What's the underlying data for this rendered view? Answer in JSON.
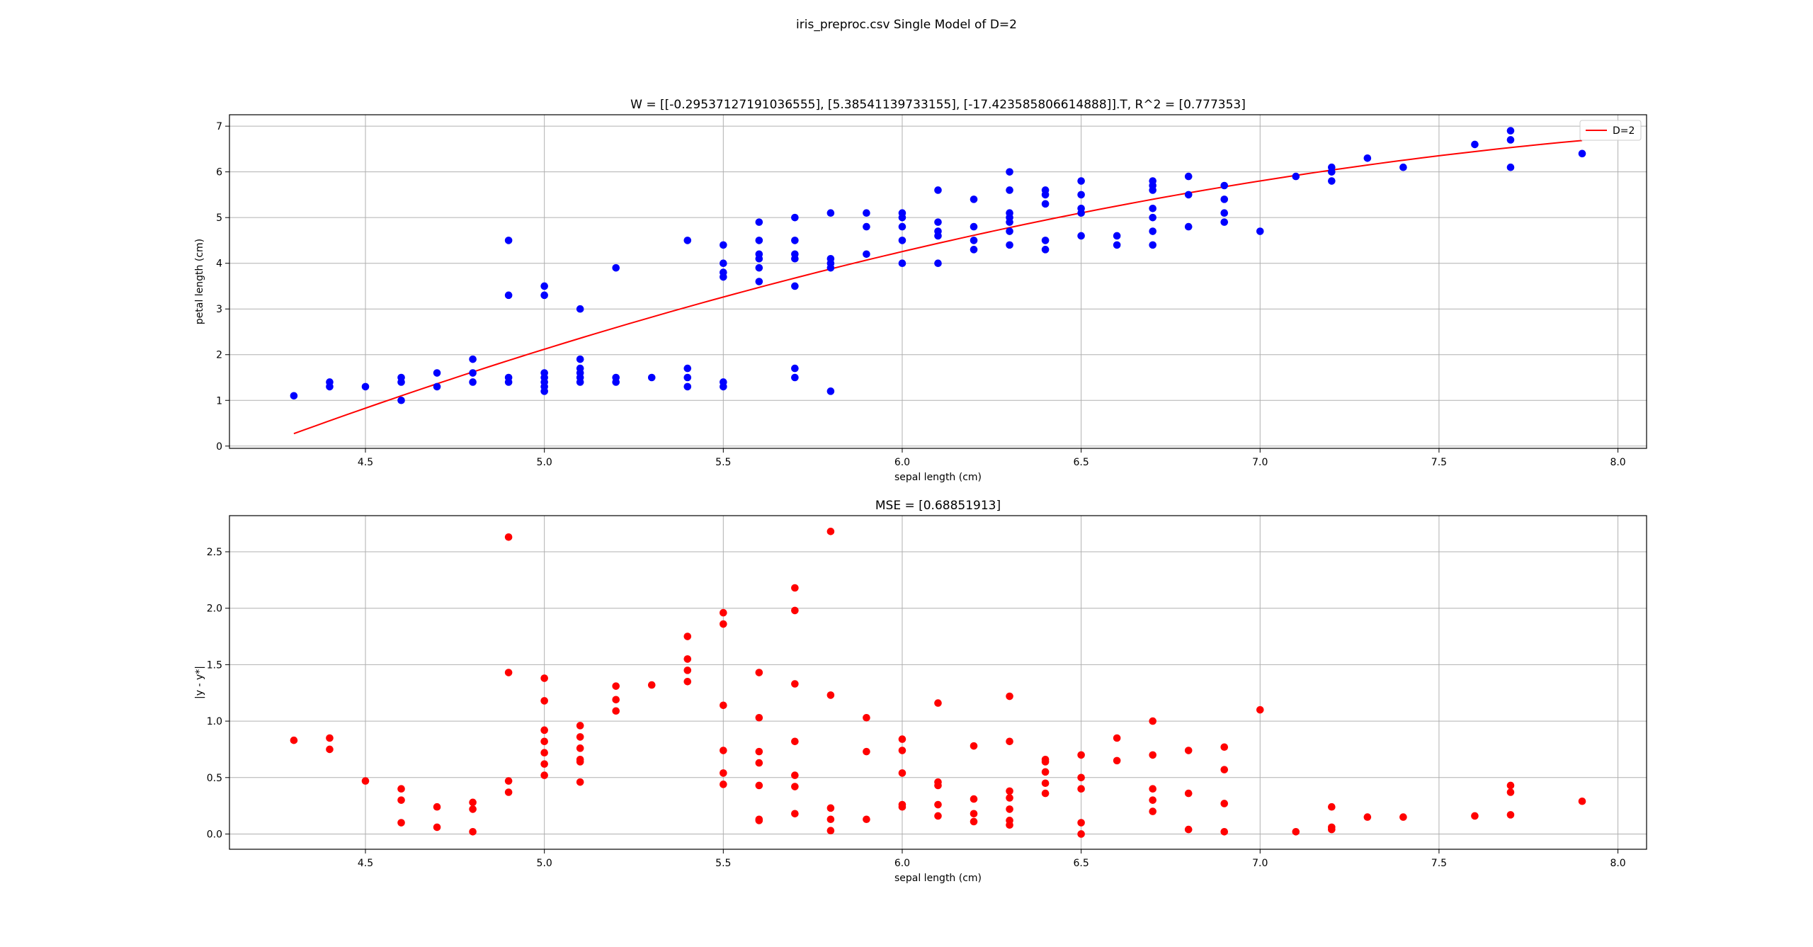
{
  "figure": {
    "suptitle": "iris_preproc.csv Single Model of D=2"
  },
  "chart_data": [
    {
      "type": "scatter",
      "title": "W = [[-0.29537127191036555], [5.38541139733155], [-17.423585806614888]].T, R^2 = [0.777353]",
      "xlabel": "sepal length (cm)",
      "ylabel": "petal length (cm)",
      "xlim": [
        4.12,
        8.08
      ],
      "ylim": [
        -0.05,
        7.25
      ],
      "xticks": [
        4.5,
        5.0,
        5.5,
        6.0,
        6.5,
        7.0,
        7.5,
        8.0
      ],
      "yticks": [
        0,
        1,
        2,
        3,
        4,
        5,
        6,
        7
      ],
      "grid": true,
      "legend_position": "top-right",
      "point_color": "#0000ff",
      "points": [
        [
          4.3,
          1.1
        ],
        [
          4.4,
          1.3
        ],
        [
          4.4,
          1.4
        ],
        [
          4.5,
          1.3
        ],
        [
          4.6,
          1.0
        ],
        [
          4.6,
          1.4
        ],
        [
          4.6,
          1.5
        ],
        [
          4.7,
          1.3
        ],
        [
          4.7,
          1.6
        ],
        [
          4.8,
          1.4
        ],
        [
          4.8,
          1.6
        ],
        [
          4.8,
          1.9
        ],
        [
          4.9,
          1.4
        ],
        [
          4.9,
          1.5
        ],
        [
          4.9,
          3.3
        ],
        [
          4.9,
          4.5
        ],
        [
          5.0,
          1.2
        ],
        [
          5.0,
          1.3
        ],
        [
          5.0,
          1.4
        ],
        [
          5.0,
          1.5
        ],
        [
          5.0,
          1.6
        ],
        [
          5.0,
          3.3
        ],
        [
          5.0,
          3.5
        ],
        [
          5.1,
          1.4
        ],
        [
          5.1,
          1.5
        ],
        [
          5.1,
          1.6
        ],
        [
          5.1,
          1.7
        ],
        [
          5.1,
          1.9
        ],
        [
          5.1,
          3.0
        ],
        [
          5.2,
          1.4
        ],
        [
          5.2,
          1.5
        ],
        [
          5.2,
          3.9
        ],
        [
          5.3,
          1.5
        ],
        [
          5.4,
          1.3
        ],
        [
          5.4,
          1.5
        ],
        [
          5.4,
          1.7
        ],
        [
          5.4,
          4.5
        ],
        [
          5.5,
          1.3
        ],
        [
          5.5,
          1.4
        ],
        [
          5.5,
          3.7
        ],
        [
          5.5,
          3.8
        ],
        [
          5.5,
          4.0
        ],
        [
          5.5,
          4.4
        ],
        [
          5.6,
          3.6
        ],
        [
          5.6,
          3.9
        ],
        [
          5.6,
          4.1
        ],
        [
          5.6,
          4.2
        ],
        [
          5.6,
          4.5
        ],
        [
          5.6,
          4.9
        ],
        [
          5.7,
          1.5
        ],
        [
          5.7,
          1.7
        ],
        [
          5.7,
          3.5
        ],
        [
          5.7,
          4.1
        ],
        [
          5.7,
          4.2
        ],
        [
          5.7,
          4.5
        ],
        [
          5.7,
          5.0
        ],
        [
          5.8,
          1.2
        ],
        [
          5.8,
          3.9
        ],
        [
          5.8,
          4.0
        ],
        [
          5.8,
          4.1
        ],
        [
          5.8,
          5.1
        ],
        [
          5.9,
          4.2
        ],
        [
          5.9,
          4.8
        ],
        [
          5.9,
          5.1
        ],
        [
          6.0,
          4.0
        ],
        [
          6.0,
          4.5
        ],
        [
          6.0,
          4.8
        ],
        [
          6.0,
          5.0
        ],
        [
          6.0,
          5.1
        ],
        [
          6.1,
          4.0
        ],
        [
          6.1,
          4.6
        ],
        [
          6.1,
          4.7
        ],
        [
          6.1,
          4.9
        ],
        [
          6.1,
          5.6
        ],
        [
          6.2,
          4.3
        ],
        [
          6.2,
          4.5
        ],
        [
          6.2,
          4.8
        ],
        [
          6.2,
          5.4
        ],
        [
          6.3,
          4.4
        ],
        [
          6.3,
          4.7
        ],
        [
          6.3,
          4.9
        ],
        [
          6.3,
          5.0
        ],
        [
          6.3,
          5.1
        ],
        [
          6.3,
          5.6
        ],
        [
          6.3,
          6.0
        ],
        [
          6.4,
          4.3
        ],
        [
          6.4,
          4.5
        ],
        [
          6.4,
          5.3
        ],
        [
          6.4,
          5.5
        ],
        [
          6.4,
          5.6
        ],
        [
          6.5,
          4.6
        ],
        [
          6.5,
          5.1
        ],
        [
          6.5,
          5.2
        ],
        [
          6.5,
          5.5
        ],
        [
          6.5,
          5.8
        ],
        [
          6.6,
          4.4
        ],
        [
          6.6,
          4.6
        ],
        [
          6.7,
          4.4
        ],
        [
          6.7,
          4.7
        ],
        [
          6.7,
          5.0
        ],
        [
          6.7,
          5.2
        ],
        [
          6.7,
          5.6
        ],
        [
          6.7,
          5.7
        ],
        [
          6.7,
          5.8
        ],
        [
          6.8,
          4.8
        ],
        [
          6.8,
          5.5
        ],
        [
          6.8,
          5.9
        ],
        [
          6.9,
          4.9
        ],
        [
          6.9,
          5.1
        ],
        [
          6.9,
          5.4
        ],
        [
          6.9,
          5.7
        ],
        [
          7.0,
          4.7
        ],
        [
          7.1,
          5.9
        ],
        [
          7.2,
          5.8
        ],
        [
          7.2,
          6.0
        ],
        [
          7.2,
          6.1
        ],
        [
          7.3,
          6.3
        ],
        [
          7.4,
          6.1
        ],
        [
          7.6,
          6.6
        ],
        [
          7.7,
          6.1
        ],
        [
          7.7,
          6.7
        ],
        [
          7.7,
          6.9
        ],
        [
          7.9,
          6.4
        ]
      ],
      "series": [
        {
          "name": "D=2",
          "type": "line",
          "color": "#ff0000",
          "coefficients": [
            -0.29537127191036555,
            5.38541139733155,
            -17.423585806614888
          ],
          "x_range": [
            4.3,
            7.9
          ]
        }
      ]
    },
    {
      "type": "scatter",
      "title": "MSE = [0.68851913]",
      "xlabel": "sepal length (cm)",
      "ylabel": "|y - y*|",
      "xlim": [
        4.12,
        8.08
      ],
      "ylim": [
        -0.135,
        2.82
      ],
      "xticks": [
        4.5,
        5.0,
        5.5,
        6.0,
        6.5,
        7.0,
        7.5,
        8.0
      ],
      "yticks": [
        0.0,
        0.5,
        1.0,
        1.5,
        2.0,
        2.5
      ],
      "grid": true,
      "point_color": "#ff0000",
      "points": [
        [
          4.3,
          0.83
        ],
        [
          4.4,
          0.75
        ],
        [
          4.4,
          0.85
        ],
        [
          4.5,
          0.47
        ],
        [
          4.6,
          0.1
        ],
        [
          4.6,
          0.3
        ],
        [
          4.6,
          0.4
        ],
        [
          4.7,
          0.06
        ],
        [
          4.7,
          0.24
        ],
        [
          4.8,
          0.02
        ],
        [
          4.8,
          0.22
        ],
        [
          4.8,
          0.28
        ],
        [
          4.9,
          0.37
        ],
        [
          4.9,
          0.47
        ],
        [
          4.9,
          1.43
        ],
        [
          4.9,
          2.63
        ],
        [
          5.0,
          0.52
        ],
        [
          5.0,
          0.62
        ],
        [
          5.0,
          0.72
        ],
        [
          5.0,
          0.82
        ],
        [
          5.0,
          0.92
        ],
        [
          5.0,
          1.18
        ],
        [
          5.0,
          1.38
        ],
        [
          5.1,
          0.46
        ],
        [
          5.1,
          0.64
        ],
        [
          5.1,
          0.66
        ],
        [
          5.1,
          0.76
        ],
        [
          5.1,
          0.86
        ],
        [
          5.1,
          0.96
        ],
        [
          5.2,
          1.09
        ],
        [
          5.2,
          1.19
        ],
        [
          5.2,
          1.31
        ],
        [
          5.3,
          1.32
        ],
        [
          5.4,
          1.35
        ],
        [
          5.4,
          1.45
        ],
        [
          5.4,
          1.55
        ],
        [
          5.4,
          1.75
        ],
        [
          5.5,
          0.44
        ],
        [
          5.5,
          0.54
        ],
        [
          5.5,
          0.74
        ],
        [
          5.5,
          1.14
        ],
        [
          5.5,
          1.86
        ],
        [
          5.5,
          1.96
        ],
        [
          5.6,
          0.12
        ],
        [
          5.6,
          0.13
        ],
        [
          5.6,
          0.43
        ],
        [
          5.6,
          0.63
        ],
        [
          5.6,
          0.73
        ],
        [
          5.6,
          1.03
        ],
        [
          5.6,
          1.43
        ],
        [
          5.7,
          0.18
        ],
        [
          5.7,
          0.42
        ],
        [
          5.7,
          0.52
        ],
        [
          5.7,
          0.82
        ],
        [
          5.7,
          1.33
        ],
        [
          5.7,
          1.98
        ],
        [
          5.7,
          2.18
        ],
        [
          5.8,
          0.03
        ],
        [
          5.8,
          0.13
        ],
        [
          5.8,
          0.23
        ],
        [
          5.8,
          1.23
        ],
        [
          5.8,
          2.68
        ],
        [
          5.9,
          0.13
        ],
        [
          5.9,
          0.73
        ],
        [
          5.9,
          1.03
        ],
        [
          6.0,
          0.24
        ],
        [
          6.0,
          0.26
        ],
        [
          6.0,
          0.54
        ],
        [
          6.0,
          0.74
        ],
        [
          6.0,
          0.84
        ],
        [
          6.1,
          0.16
        ],
        [
          6.1,
          0.26
        ],
        [
          6.1,
          0.43
        ],
        [
          6.1,
          0.46
        ],
        [
          6.1,
          1.16
        ],
        [
          6.2,
          0.11
        ],
        [
          6.2,
          0.18
        ],
        [
          6.2,
          0.31
        ],
        [
          6.2,
          0.78
        ],
        [
          6.3,
          0.08
        ],
        [
          6.3,
          0.12
        ],
        [
          6.3,
          0.22
        ],
        [
          6.3,
          0.32
        ],
        [
          6.3,
          0.38
        ],
        [
          6.3,
          0.82
        ],
        [
          6.3,
          1.22
        ],
        [
          6.4,
          0.36
        ],
        [
          6.4,
          0.45
        ],
        [
          6.4,
          0.55
        ],
        [
          6.4,
          0.64
        ],
        [
          6.4,
          0.66
        ],
        [
          6.5,
          0.0
        ],
        [
          6.5,
          0.1
        ],
        [
          6.5,
          0.4
        ],
        [
          6.5,
          0.5
        ],
        [
          6.5,
          0.7
        ],
        [
          6.6,
          0.65
        ],
        [
          6.6,
          0.85
        ],
        [
          6.7,
          0.2
        ],
        [
          6.7,
          0.3
        ],
        [
          6.7,
          0.4
        ],
        [
          6.7,
          0.7
        ],
        [
          6.7,
          1.0
        ],
        [
          6.8,
          0.04
        ],
        [
          6.8,
          0.36
        ],
        [
          6.8,
          0.74
        ],
        [
          6.9,
          0.02
        ],
        [
          6.9,
          0.27
        ],
        [
          6.9,
          0.57
        ],
        [
          6.9,
          0.77
        ],
        [
          7.0,
          1.1
        ],
        [
          7.1,
          0.02
        ],
        [
          7.2,
          0.04
        ],
        [
          7.2,
          0.06
        ],
        [
          7.2,
          0.24
        ],
        [
          7.3,
          0.15
        ],
        [
          7.4,
          0.15
        ],
        [
          7.6,
          0.16
        ],
        [
          7.7,
          0.17
        ],
        [
          7.7,
          0.37
        ],
        [
          7.7,
          0.43
        ],
        [
          7.9,
          0.29
        ]
      ]
    }
  ]
}
